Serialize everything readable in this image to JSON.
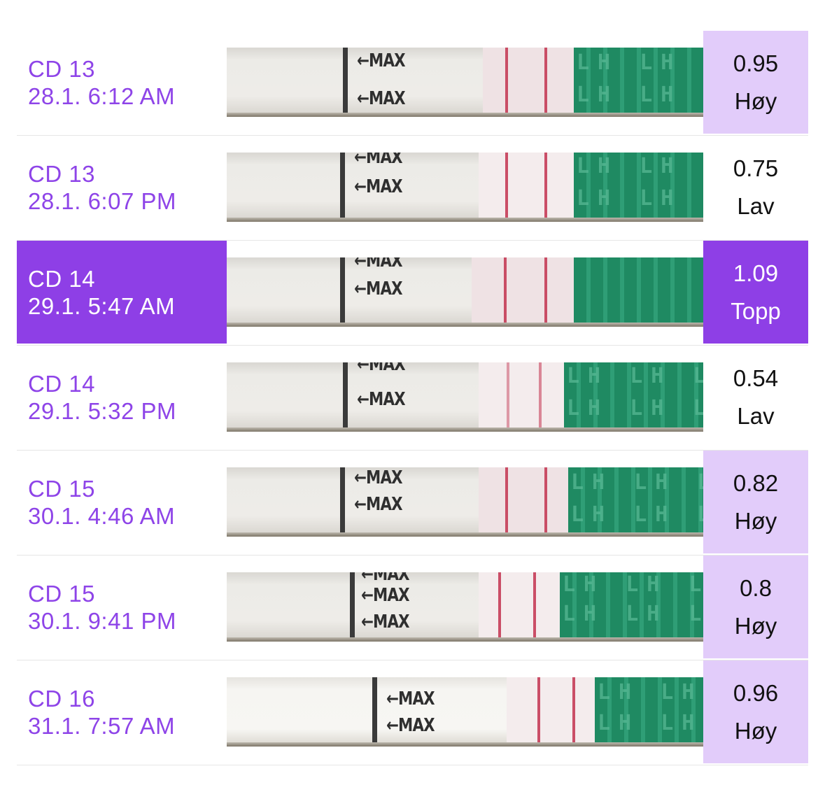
{
  "colors": {
    "accent": "#8e3fe6",
    "accent_text": "#8e44e8",
    "high_bg": "#e2ccfa",
    "strip_green": "#1f8a62",
    "test_line": "#c2334f"
  },
  "strip_labels": {
    "max_arrow": "←MAX",
    "lh": "LH"
  },
  "entries": [
    {
      "cycle_day": "CD 13",
      "datetime": "28.1. 6:12 AM",
      "value": "0.95",
      "level": "Høy",
      "level_type": "high",
      "selected": false
    },
    {
      "cycle_day": "CD 13",
      "datetime": "28.1. 6:07 PM",
      "value": "0.75",
      "level": "Lav",
      "level_type": "low",
      "selected": false
    },
    {
      "cycle_day": "CD 14",
      "datetime": "29.1. 5:47 AM",
      "value": "1.09",
      "level": "Topp",
      "level_type": "peak",
      "selected": true
    },
    {
      "cycle_day": "CD 14",
      "datetime": "29.1. 5:32 PM",
      "value": "0.54",
      "level": "Lav",
      "level_type": "low",
      "selected": false
    },
    {
      "cycle_day": "CD 15",
      "datetime": "30.1. 4:46 AM",
      "value": "0.82",
      "level": "Høy",
      "level_type": "high",
      "selected": false
    },
    {
      "cycle_day": "CD 15",
      "datetime": "30.1. 9:41 PM",
      "value": "0.8",
      "level": "Høy",
      "level_type": "high",
      "selected": false
    },
    {
      "cycle_day": "CD 16",
      "datetime": "31.1. 7:57 AM",
      "value": "0.96",
      "level": "Høy",
      "level_type": "high",
      "selected": false
    }
  ]
}
